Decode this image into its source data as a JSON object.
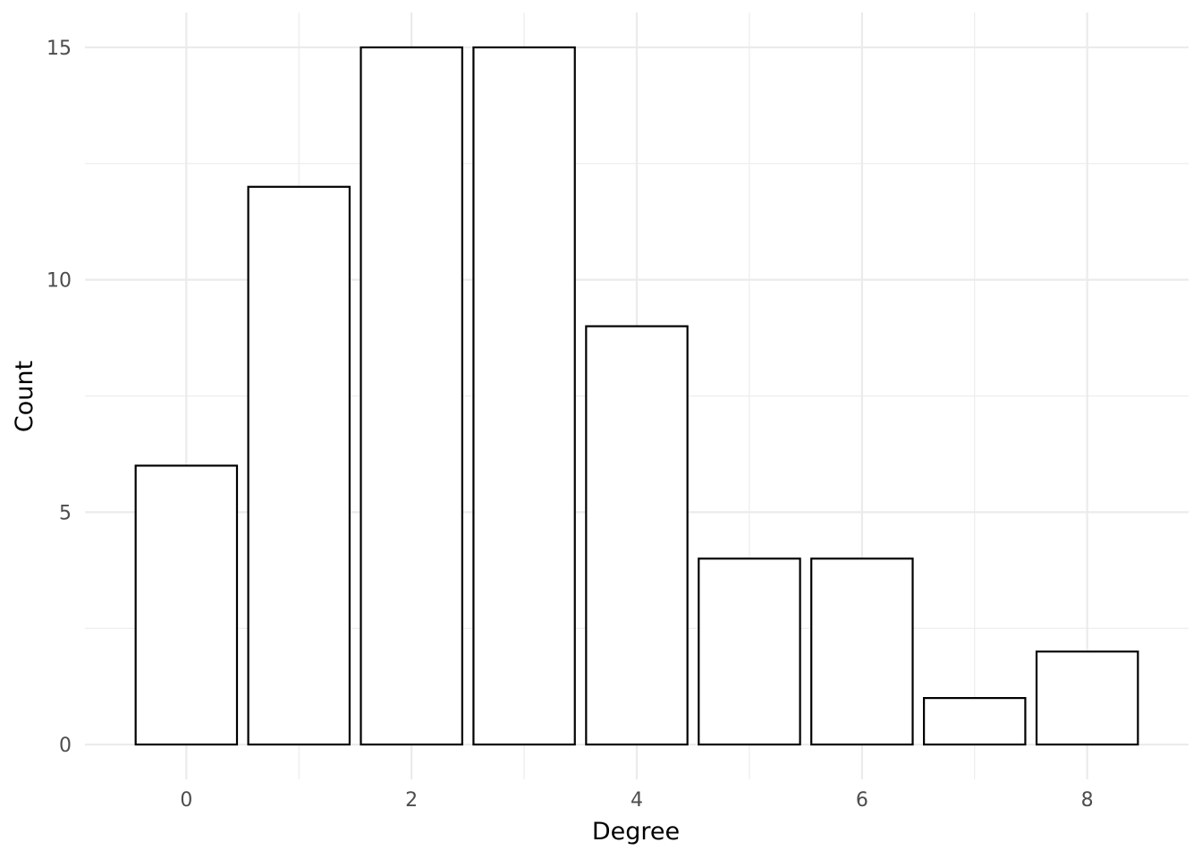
{
  "chart_data": {
    "type": "bar",
    "xlabel": "Degree",
    "ylabel": "Count",
    "categories": [
      0,
      1,
      2,
      3,
      4,
      5,
      6,
      7,
      8
    ],
    "values": [
      6,
      12,
      15,
      15,
      9,
      4,
      4,
      1,
      2
    ],
    "xlim": [
      -0.9,
      8.9
    ],
    "ylim": [
      -0.75,
      15.75
    ],
    "x_ticks": [
      "0",
      "2",
      "4",
      "6",
      "8"
    ],
    "y_ticks": [
      "0",
      "5",
      "10",
      "15"
    ],
    "grid": true,
    "bar_fill": "#ffffff",
    "bar_stroke": "#000000",
    "grid_color": "#ebebeb"
  }
}
